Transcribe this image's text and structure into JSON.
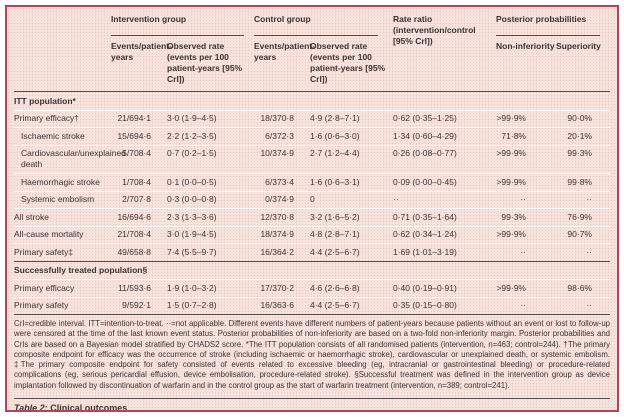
{
  "colors": {
    "background": "#f7e3de",
    "panel_border": "#b8415a",
    "dark_rule": "#55484a",
    "row_separator": "#ffffff",
    "text": "#3b3233"
  },
  "header": {
    "groups": [
      {
        "label": "Intervention group"
      },
      {
        "label": "Control group"
      },
      {
        "label": "Rate ratio (intervention/control [95% CrI])"
      },
      {
        "label": "Posterior probabilities"
      }
    ],
    "sub": {
      "events_intervention": "Events/patient-years",
      "rate_intervention": "Observed rate (events per 100 patient-years [95% CrI])",
      "events_control": "Events/patient-years",
      "rate_control": "Observed rate (events per 100 patient-years [95% CrI])",
      "noninferiority": "Non-inferiority",
      "superiority": "Superiority"
    }
  },
  "sections": [
    {
      "header": "ITT population*",
      "rows": [
        {
          "label": "Primary efficacy†",
          "indent": false,
          "cells": [
            "21/694·1",
            "3·0 (1·9–4·5)",
            "18/370·8",
            "4·9 (2·8–7·1)",
            "0·62 (0·35–1·25)",
            ">99·9%",
            "90·0%"
          ]
        },
        {
          "label": "Ischaemic stroke",
          "indent": true,
          "cells": [
            "15/694·6",
            "2·2 (1·2–3·5)",
            "6/372·3",
            "1·6 (0·6–3·0)",
            "1·34 (0·60–4·29)",
            "71·8%",
            "20·1%"
          ]
        },
        {
          "label": "Cardiovascular/unexplained death",
          "indent": true,
          "cells": [
            "5/708·4",
            "0·7 (0·2–1·5)",
            "10/374·9",
            "2·7 (1·2–4·4)",
            "0·26 (0·08–0·77)",
            ">99·9%",
            "99·3%"
          ]
        },
        {
          "label": "Haemorrhagic stroke",
          "indent": true,
          "cells": [
            "1/708·4",
            "0·1 (0·0–0·5)",
            "6/373·4",
            "1·6 (0·6–3·1)",
            "0·09 (0·00–0·45)",
            ">99·9%",
            "99·8%"
          ]
        },
        {
          "label": "Systemic embolism",
          "indent": true,
          "cells": [
            "2/707·8",
            "0·3 (0·0–0·8)",
            "0/374·9",
            "0",
            "··",
            "··",
            "··"
          ]
        },
        {
          "label": "All stroke",
          "indent": false,
          "cells": [
            "16/694·6",
            "2·3 (1·3–3·6)",
            "12/370·8",
            "3·2 (1·6–5·2)",
            "0·71 (0·35–1·64)",
            "99·3%",
            "76·9%"
          ]
        },
        {
          "label": "All-cause mortality",
          "indent": false,
          "cells": [
            "21/708·4",
            "3·0 (1·9–4·5)",
            "18/374·9",
            "4·8 (2·8–7·1)",
            "0·62 (0·34–1·24)",
            ">99·9%",
            "90·7%"
          ]
        },
        {
          "label": "Primary safety‡",
          "indent": false,
          "cells": [
            "49/658·8",
            "7·4 (5·5–9·7)",
            "16/364·2",
            "4·4 (2·5–6·7)",
            "1·69 (1·01–3·19)",
            "··",
            "··"
          ]
        }
      ]
    },
    {
      "header": "Successfully treated population§",
      "rows": [
        {
          "label": "Primary efficacy",
          "indent": false,
          "cells": [
            "11/593·6",
            "1·9 (1·0–3·2)",
            "17/370·2",
            "4·6 (2·6–6·8)",
            "0·40 (0·19–0·91)",
            ">99·9%",
            "98·6%"
          ]
        },
        {
          "label": "Primary safety",
          "indent": false,
          "cells": [
            "9/592·1",
            "1·5 (0·7–2·8)",
            "16/363·6",
            "4·4 (2·5–6·7)",
            "0·35 (0·15–0·80)",
            "··",
            "··"
          ]
        }
      ]
    }
  ],
  "footnote": "CrI=credible interval. ITT=intention-to-treat. ··=not applicable. Different events have different numbers of patient-years because patients without an event or lost to follow-up were censored at the time of the last known event status. Posterior probabilities of non-inferiority are based on a two-fold non-inferiority margin. Posterior probabilities and CrIs are based on a Bayesian model stratified by CHADS2 score. *The ITT population consists of all randomised patients (intervention, n=463; control=244). †The primary composite endpoint for efficacy was the occurrence of stroke (including ischaemic or haemorrhagic stroke), cardiovascular or unexplained death, or systemic embolism. ‡The primary composite endpoint for safety consisted of events related to excessive bleeding (eg, intracranial or gastrointestinal bleeding) or procedure-related complications (eg, serious pericardial effusion, device embolisation, procedure-related stroke). §Successful treatment was defined in the intervention group as device implantation followed by discontinuation of warfarin and in the control group as the start of warfarin treatment (intervention, n=389; control=241).",
  "caption": {
    "label": "Table 2:",
    "title": "Clinical outcomes"
  }
}
